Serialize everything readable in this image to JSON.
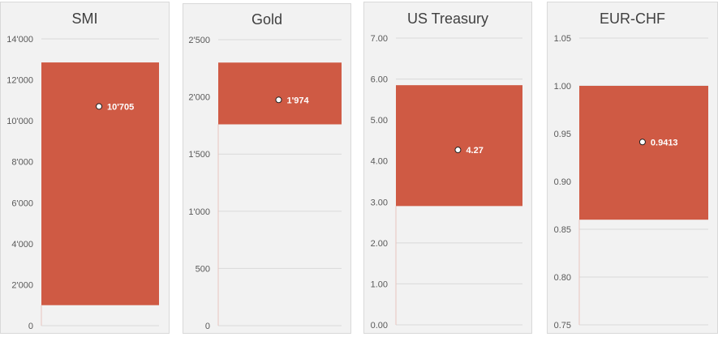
{
  "colors": {
    "bar": "#cf5a44",
    "grid": "#d9d9d9",
    "tick": "#595959",
    "title": "#404040",
    "panel": "#f2f2f2",
    "marker": "#ffffff"
  },
  "chart_data": [
    {
      "type": "bar",
      "title": "SMI",
      "ylim": [
        0,
        14000
      ],
      "ticks": [
        0,
        2000,
        4000,
        6000,
        8000,
        10000,
        12000,
        14000
      ],
      "tick_labels": [
        "0",
        "2'000",
        "4'000",
        "6'000",
        "8'000",
        "10'000",
        "12'000",
        "14'000"
      ],
      "range_low": 1000,
      "range_high": 12850,
      "point": 10705,
      "point_label": "10'705",
      "grid": true
    },
    {
      "type": "bar",
      "title": "Gold",
      "ylim": [
        0,
        2500
      ],
      "ticks": [
        0,
        500,
        1000,
        1500,
        2000,
        2500
      ],
      "tick_labels": [
        "0",
        "500",
        "1'000",
        "1'500",
        "2'000",
        "2'500"
      ],
      "range_low": 1760,
      "range_high": 2300,
      "point": 1974,
      "point_label": "1'974",
      "grid": true
    },
    {
      "type": "bar",
      "title": "US Treasury",
      "ylim": [
        0,
        7
      ],
      "ticks": [
        0,
        1,
        2,
        3,
        4,
        5,
        6,
        7
      ],
      "tick_labels": [
        "0.00",
        "1.00",
        "2.00",
        "3.00",
        "4.00",
        "5.00",
        "6.00",
        "7.00"
      ],
      "range_low": 2.9,
      "range_high": 5.85,
      "point": 4.27,
      "point_label": "4.27",
      "grid": true
    },
    {
      "type": "bar",
      "title": "EUR-CHF",
      "ylim": [
        0.75,
        1.05
      ],
      "ticks": [
        0.75,
        0.8,
        0.85,
        0.9,
        0.95,
        1.0,
        1.05
      ],
      "tick_labels": [
        "0.75",
        "0.80",
        "0.85",
        "0.90",
        "0.95",
        "1.00",
        "1.05"
      ],
      "range_low": 0.86,
      "range_high": 1.0,
      "point": 0.9413,
      "point_label": "0.9413",
      "grid": true
    }
  ]
}
